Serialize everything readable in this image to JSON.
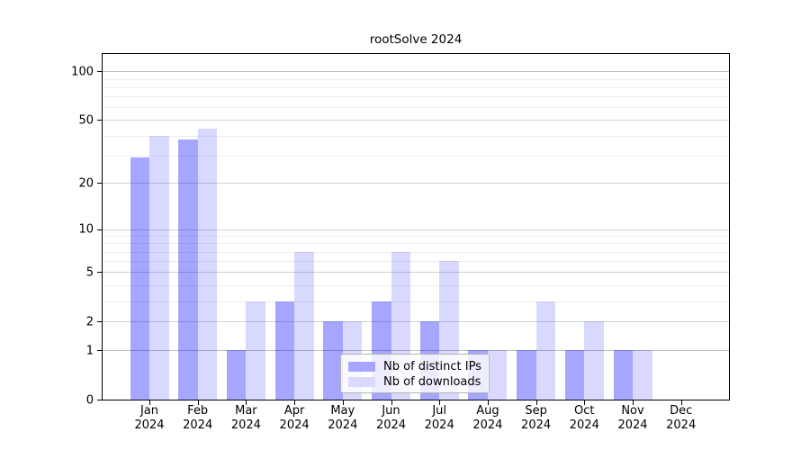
{
  "title": "rootSolve 2024",
  "chart_data": {
    "type": "bar",
    "title": "rootSolve 2024",
    "categories": [
      "Jan 2024",
      "Feb 2024",
      "Mar 2024",
      "Apr 2024",
      "May 2024",
      "Jun 2024",
      "Jul 2024",
      "Aug 2024",
      "Sep 2024",
      "Oct 2024",
      "Nov 2024",
      "Dec 2024"
    ],
    "series": [
      {
        "name": "Nb of distinct IPs",
        "color": "#a6a6ff",
        "fill": "rgba(0,0,255,0.35)",
        "values": [
          29,
          38,
          1,
          3,
          2,
          3,
          2,
          1,
          1,
          1,
          1,
          0
        ]
      },
      {
        "name": "Nb of downloads",
        "color": "#d9d9ff",
        "fill": "rgba(0,0,255,0.15)",
        "values": [
          40,
          44,
          3,
          7,
          2,
          7,
          6,
          1,
          3,
          2,
          1,
          0
        ]
      }
    ],
    "xlabel": "",
    "ylabel": "",
    "yscale": "log1p",
    "ylim": [
      0,
      128
    ],
    "y_tick_values": [
      0,
      1,
      2,
      5,
      10,
      20,
      50,
      100
    ],
    "y_tick_labels": [
      "0",
      "1",
      "2",
      "5",
      "10",
      "20",
      "50",
      "100"
    ],
    "y_minor_gridlines": [
      3,
      4,
      6,
      7,
      8,
      9,
      30,
      40,
      60,
      70,
      80,
      90
    ],
    "grid": "horizontal",
    "legend_position": "inside-bottom-center",
    "bar_grouping": "beside"
  }
}
